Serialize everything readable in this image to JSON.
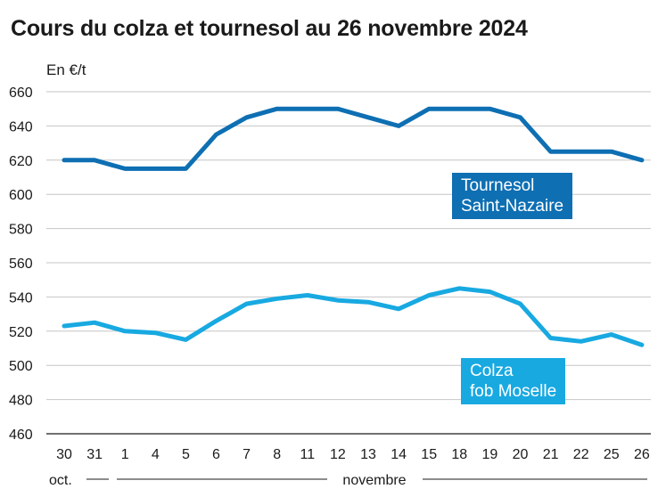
{
  "chart_data": {
    "type": "line",
    "title": "Cours du colza et tournesol au 26 novembre 2024",
    "ylabel": "En €/t",
    "ylim": [
      460,
      660
    ],
    "yticks": [
      460,
      480,
      500,
      520,
      540,
      560,
      580,
      600,
      620,
      640,
      660
    ],
    "grid": true,
    "categories": [
      "30",
      "31",
      "1",
      "4",
      "5",
      "6",
      "7",
      "8",
      "11",
      "12",
      "13",
      "14",
      "15",
      "18",
      "19",
      "20",
      "21",
      "22",
      "25",
      "26"
    ],
    "month_labels": [
      {
        "label": "oct."
      },
      {
        "label": "novembre"
      }
    ],
    "series": [
      {
        "name": "Tournesol\nSaint-Nazaire",
        "color": "#0e6fb3",
        "values": [
          620,
          620,
          615,
          615,
          615,
          635,
          645,
          650,
          650,
          650,
          645,
          640,
          650,
          650,
          650,
          645,
          625,
          625,
          625,
          620
        ]
      },
      {
        "name": "Colza\nfob Moselle",
        "color": "#18a9e1",
        "values": [
          523,
          525,
          520,
          519,
          515,
          526,
          536,
          539,
          541,
          538,
          537,
          533,
          541,
          545,
          543,
          536,
          516,
          514,
          518,
          512
        ]
      }
    ]
  }
}
